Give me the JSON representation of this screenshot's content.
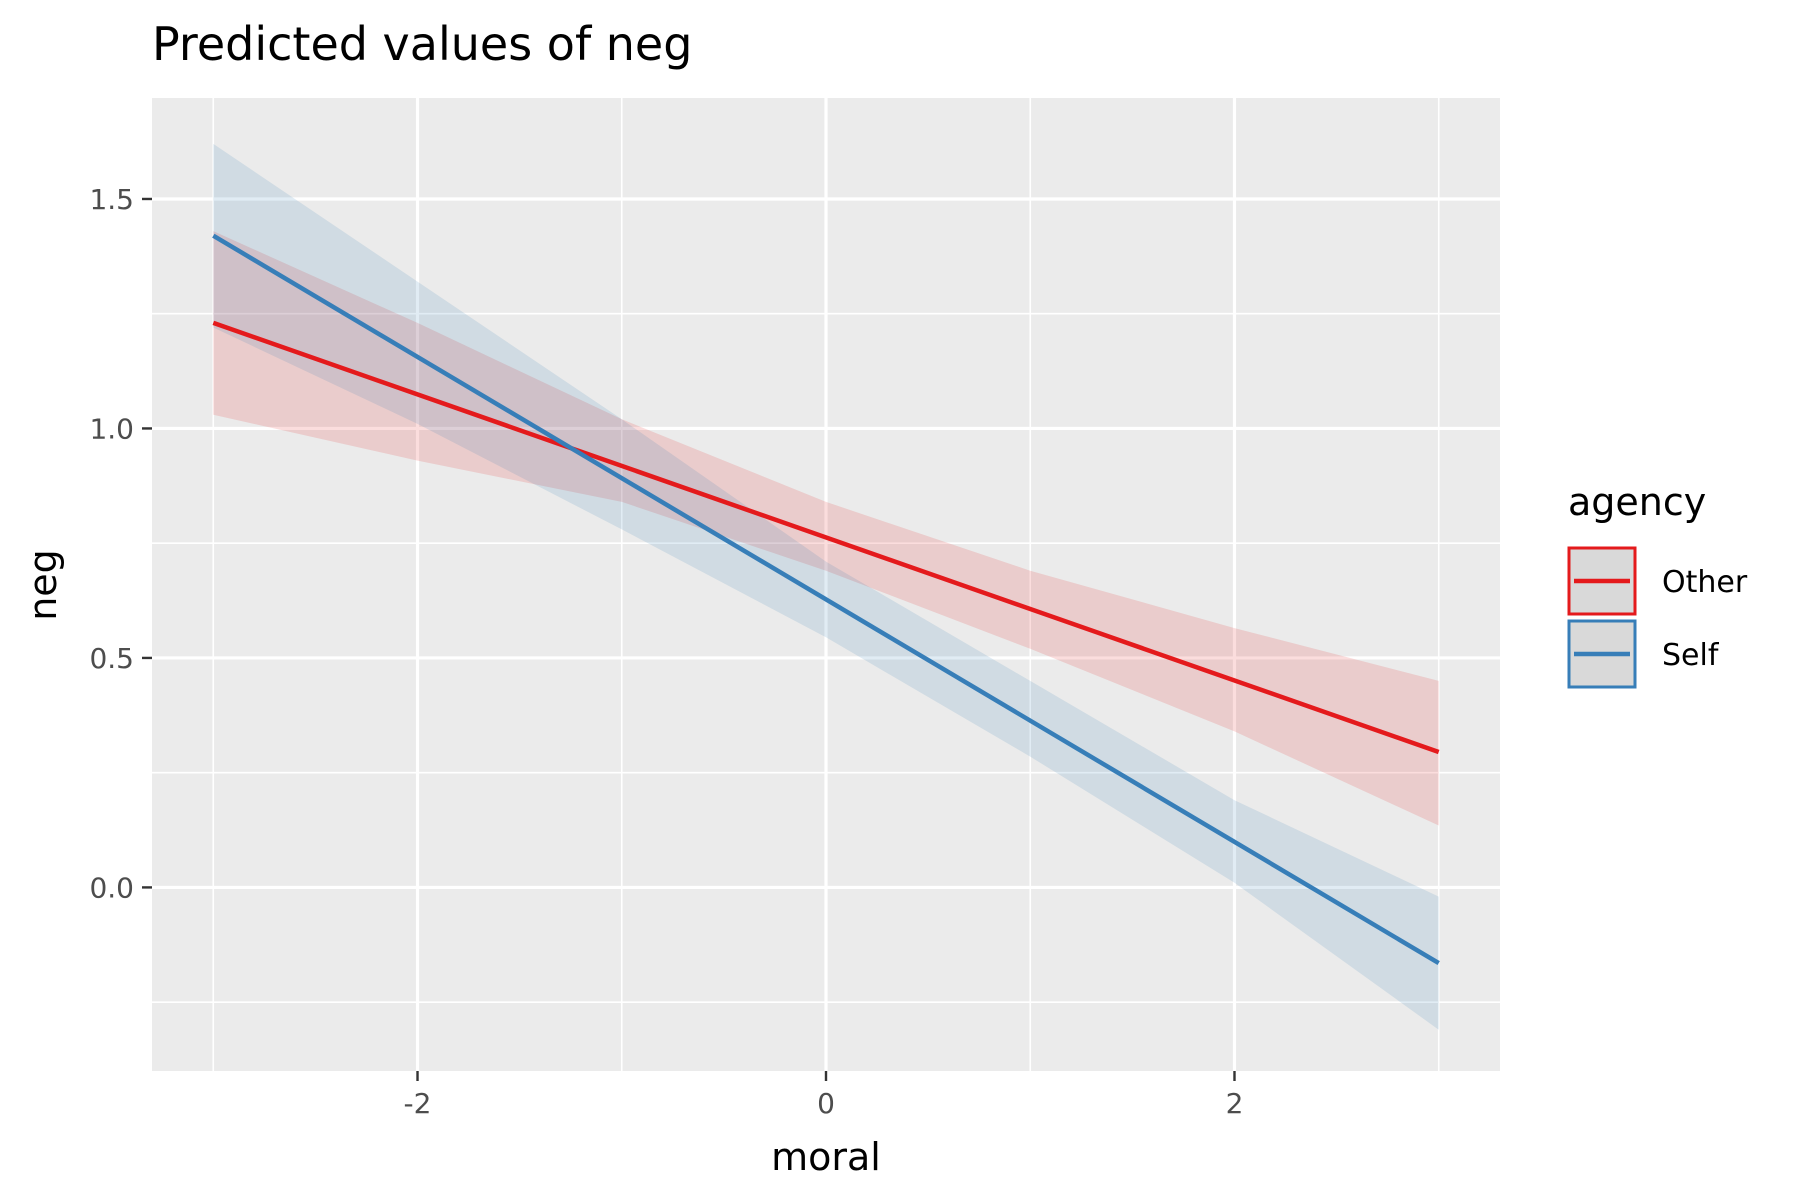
{
  "chart_data": {
    "type": "line",
    "title": "Predicted values of neg",
    "xlabel": "moral",
    "ylabel": "neg",
    "xlim": [
      -3.3,
      3.3
    ],
    "ylim": [
      -0.4,
      1.72
    ],
    "x_major_ticks": [
      -2,
      0,
      2
    ],
    "x_tick_labels": [
      "-2",
      "0",
      "2"
    ],
    "x_minor_ticks": [
      -3,
      -1,
      1,
      3
    ],
    "y_major_ticks": [
      0.0,
      0.5,
      1.0,
      1.5
    ],
    "y_tick_labels": [
      "0.0",
      "0.5",
      "1.0",
      "1.5"
    ],
    "y_minor_ticks": [
      -0.25,
      0.25,
      0.75,
      1.25
    ],
    "grid": true,
    "legend": {
      "title": "agency",
      "position": "right"
    },
    "series": [
      {
        "name": "Other",
        "color": "#e41a1c",
        "x": [
          -3,
          3
        ],
        "y": [
          1.23,
          0.295
        ],
        "ci_x": [
          -3,
          -2,
          -1,
          0,
          1,
          2,
          3
        ],
        "ci_lower": [
          1.03,
          0.93,
          0.84,
          0.69,
          0.52,
          0.34,
          0.135
        ],
        "ci_upper": [
          1.43,
          1.23,
          1.02,
          0.84,
          0.69,
          0.565,
          0.45
        ]
      },
      {
        "name": "Self",
        "color": "#377eb8",
        "x": [
          -3,
          3
        ],
        "y": [
          1.42,
          -0.165
        ],
        "ci_x": [
          -3,
          -2,
          -1,
          0,
          1,
          2,
          3
        ],
        "ci_lower": [
          1.22,
          1.01,
          0.78,
          0.545,
          0.285,
          0.01,
          -0.31
        ],
        "ci_upper": [
          1.62,
          1.32,
          1.02,
          0.71,
          0.45,
          0.19,
          -0.02
        ]
      }
    ]
  }
}
